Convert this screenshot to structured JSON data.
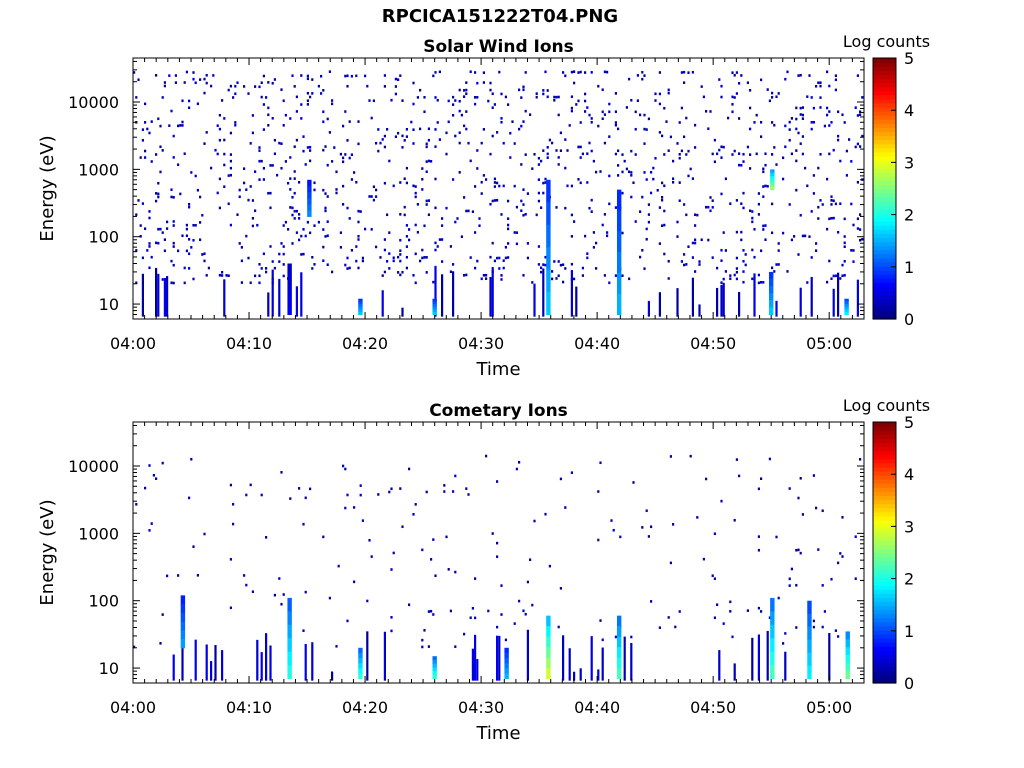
{
  "figure": {
    "title": "RPCICA151222T04.PNG"
  },
  "colorbar": {
    "label": "Log counts",
    "ticks": [
      0,
      1,
      2,
      3,
      4,
      5
    ],
    "range": [
      0,
      5
    ],
    "colormap": "jet"
  },
  "chart_data": [
    {
      "type": "heatmap",
      "title": "Solar Wind Ions",
      "xlabel": "Time",
      "ylabel": "Energy (eV)",
      "x_ticks": [
        "04:00",
        "04:10",
        "04:20",
        "04:30",
        "04:40",
        "04:50",
        "05:00"
      ],
      "x_range_minutes": [
        0,
        63
      ],
      "y_scale": "log",
      "y_ticks": [
        10,
        100,
        1000,
        10000
      ],
      "ylim": [
        6,
        45000
      ],
      "z_label": "Log counts",
      "z_range": [
        0,
        5
      ],
      "sparse_background": {
        "density": 0.3,
        "energy_range": [
          20,
          30000
        ],
        "typical_value": 0.15
      },
      "features": [
        {
          "time_min": 13.5,
          "energy_range": [
            7,
            40
          ],
          "value": 0.6
        },
        {
          "time_min": 15.2,
          "energy_range": [
            200,
            700
          ],
          "value": 1.3
        },
        {
          "time_min": 19.6,
          "energy_range": [
            7,
            12
          ],
          "value": 1.6
        },
        {
          "time_min": 26.0,
          "energy_range": [
            7,
            12
          ],
          "value": 1.6
        },
        {
          "time_min": 35.8,
          "energy_range": [
            7,
            700
          ],
          "value": 1.6
        },
        {
          "time_min": 41.9,
          "energy_range": [
            7,
            500
          ],
          "value": 1.5
        },
        {
          "time_min": 55.1,
          "energy_range": [
            500,
            1000
          ],
          "value": 2.6
        },
        {
          "time_min": 55.0,
          "energy_range": [
            7,
            30
          ],
          "value": 1.6
        },
        {
          "time_min": 61.5,
          "energy_range": [
            7,
            12
          ],
          "value": 1.8
        }
      ]
    },
    {
      "type": "heatmap",
      "title": "Cometary Ions",
      "xlabel": "Time",
      "ylabel": "Energy (eV)",
      "x_ticks": [
        "04:00",
        "04:10",
        "04:20",
        "04:30",
        "04:40",
        "04:50",
        "05:00"
      ],
      "x_range_minutes": [
        0,
        63
      ],
      "y_scale": "log",
      "y_ticks": [
        10,
        100,
        1000,
        10000
      ],
      "ylim": [
        6,
        45000
      ],
      "z_label": "Log counts",
      "z_range": [
        0,
        5
      ],
      "sparse_background": {
        "density": 0.06,
        "energy_range": [
          20,
          15000
        ],
        "typical_value": 0.15
      },
      "features": [
        {
          "time_min": 4.3,
          "energy_range": [
            20,
            120
          ],
          "value": 1.4
        },
        {
          "time_min": 13.5,
          "energy_range": [
            7,
            110
          ],
          "value": 2.0
        },
        {
          "time_min": 19.6,
          "energy_range": [
            7,
            20
          ],
          "value": 2.1
        },
        {
          "time_min": 26.0,
          "energy_range": [
            7,
            15
          ],
          "value": 2.1
        },
        {
          "time_min": 32.2,
          "energy_range": [
            7,
            20
          ],
          "value": 1.5
        },
        {
          "time_min": 35.8,
          "energy_range": [
            7,
            60
          ],
          "value": 2.9
        },
        {
          "time_min": 41.9,
          "energy_range": [
            7,
            60
          ],
          "value": 2.2
        },
        {
          "time_min": 55.1,
          "energy_range": [
            7,
            110
          ],
          "value": 2.2
        },
        {
          "time_min": 58.3,
          "energy_range": [
            7,
            100
          ],
          "value": 1.8
        },
        {
          "time_min": 61.6,
          "energy_range": [
            7,
            35
          ],
          "value": 2.4
        }
      ]
    }
  ]
}
